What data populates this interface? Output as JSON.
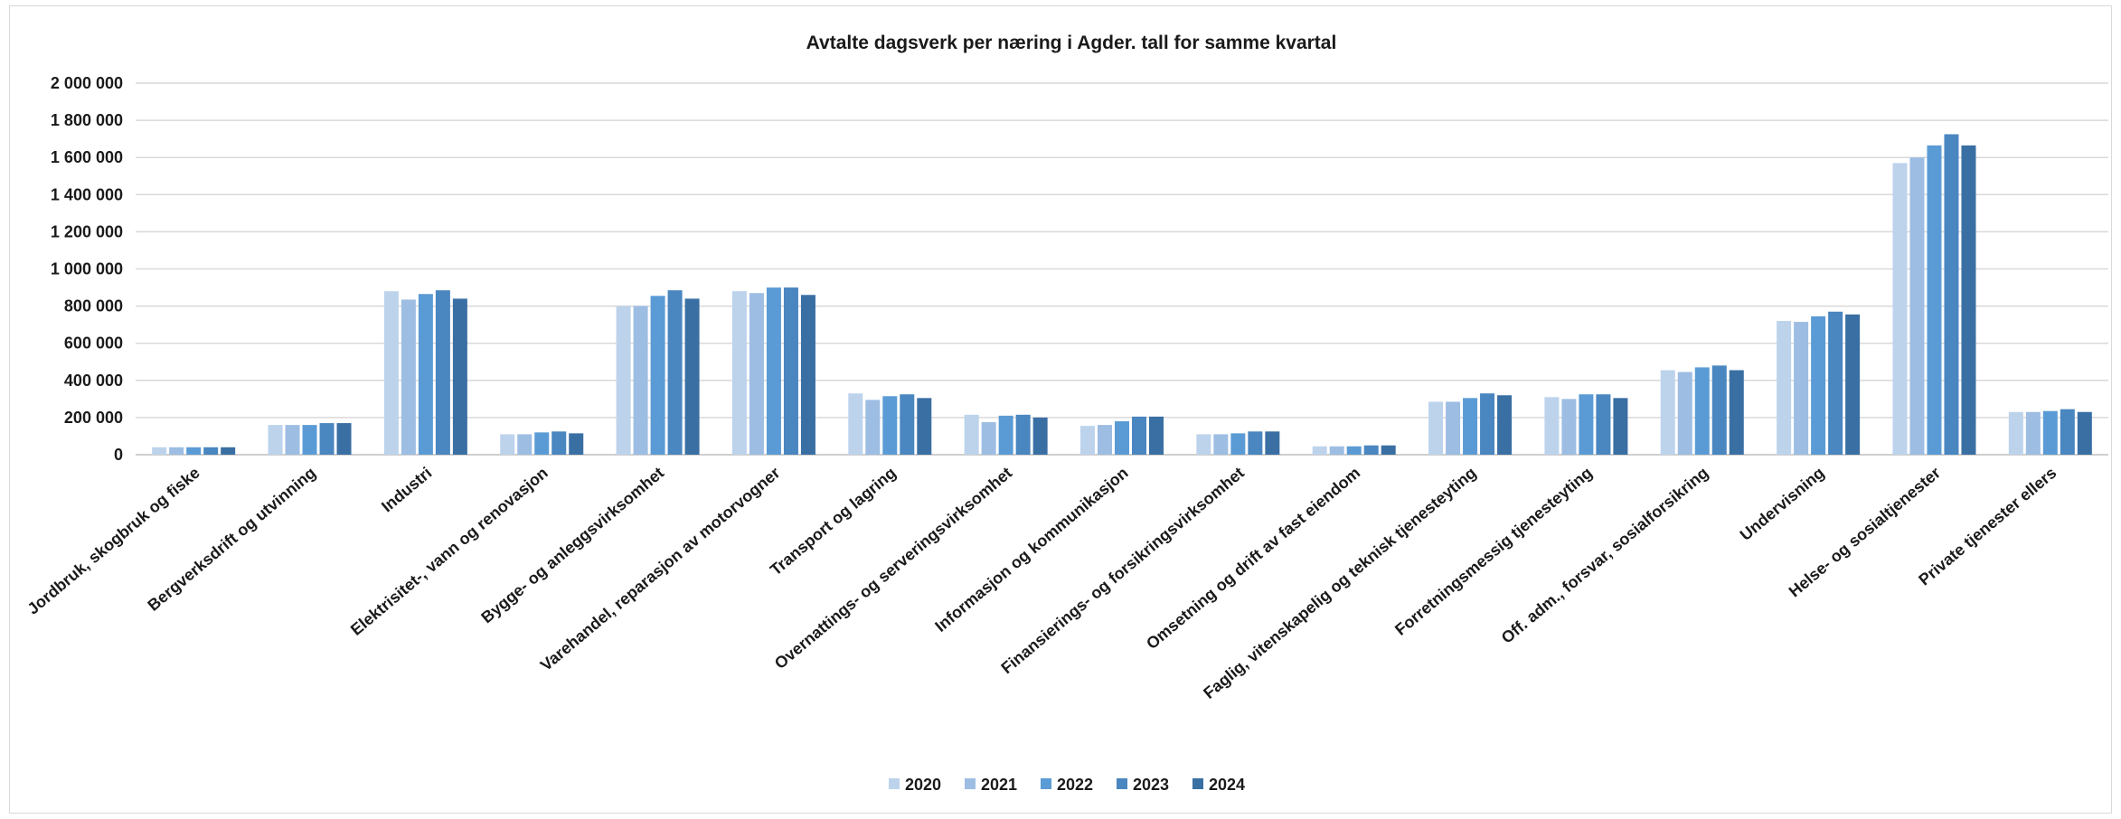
{
  "chart_data": {
    "type": "bar",
    "title": "Avtalte dagsverk per næring i Agder. tall for samme kvartal",
    "xlabel": "",
    "ylabel": "",
    "ylim": [
      0,
      2000000
    ],
    "yticks": [
      0,
      200000,
      400000,
      600000,
      800000,
      1000000,
      1200000,
      1400000,
      1600000,
      1800000,
      2000000
    ],
    "ytick_labels": [
      "0",
      "200 000",
      "400 000",
      "600 000",
      "800 000",
      "1 000 000",
      "1 200 000",
      "1 400 000",
      "1 600 000",
      "1 800 000",
      "2 000 000"
    ],
    "grid": true,
    "legend_position": "bottom",
    "categories": [
      "Jordbruk, skogbruk og fiske",
      "Bergverksdrift og utvinning",
      "Industri",
      "Elektrisitet-, vann og renovasjon",
      "Bygge- og anleggsvirksomhet",
      "Varehandel, reparasjon av motorvogner",
      "Transport og lagring",
      "Overnattings- og serveringsvirksomhet",
      "Informasjon og kommunikasjon",
      "Finansierings- og forsikringsvirksomhet",
      "Omsetning og drift av fast eiendom",
      "Faglig, vitenskapelig og teknisk tjenesteyting",
      "Forretningsmessig tjenesteyting",
      "Off. adm., forsvar, sosialforsikring",
      "Undervisning",
      "Helse- og sosialtjenester",
      "Private tjenester ellers"
    ],
    "series": [
      {
        "name": "2020",
        "color": "#bdd3ec",
        "values": [
          40000,
          160000,
          880000,
          110000,
          800000,
          880000,
          330000,
          215000,
          155000,
          110000,
          45000,
          285000,
          310000,
          455000,
          720000,
          1570000,
          230000
        ]
      },
      {
        "name": "2021",
        "color": "#9dbde3",
        "values": [
          40000,
          160000,
          835000,
          110000,
          800000,
          870000,
          295000,
          175000,
          160000,
          110000,
          45000,
          285000,
          300000,
          445000,
          715000,
          1600000,
          230000
        ]
      },
      {
        "name": "2022",
        "color": "#5b9bd5",
        "values": [
          40000,
          160000,
          865000,
          120000,
          855000,
          900000,
          315000,
          210000,
          180000,
          115000,
          45000,
          305000,
          325000,
          470000,
          745000,
          1665000,
          235000
        ]
      },
      {
        "name": "2023",
        "color": "#4a86c0",
        "values": [
          40000,
          170000,
          885000,
          125000,
          885000,
          900000,
          325000,
          215000,
          205000,
          125000,
          50000,
          330000,
          325000,
          480000,
          770000,
          1725000,
          245000
        ]
      },
      {
        "name": "2024",
        "color": "#3a6fa3",
        "values": [
          40000,
          170000,
          840000,
          115000,
          840000,
          860000,
          305000,
          200000,
          205000,
          125000,
          50000,
          320000,
          305000,
          455000,
          755000,
          1665000,
          230000
        ]
      }
    ]
  }
}
